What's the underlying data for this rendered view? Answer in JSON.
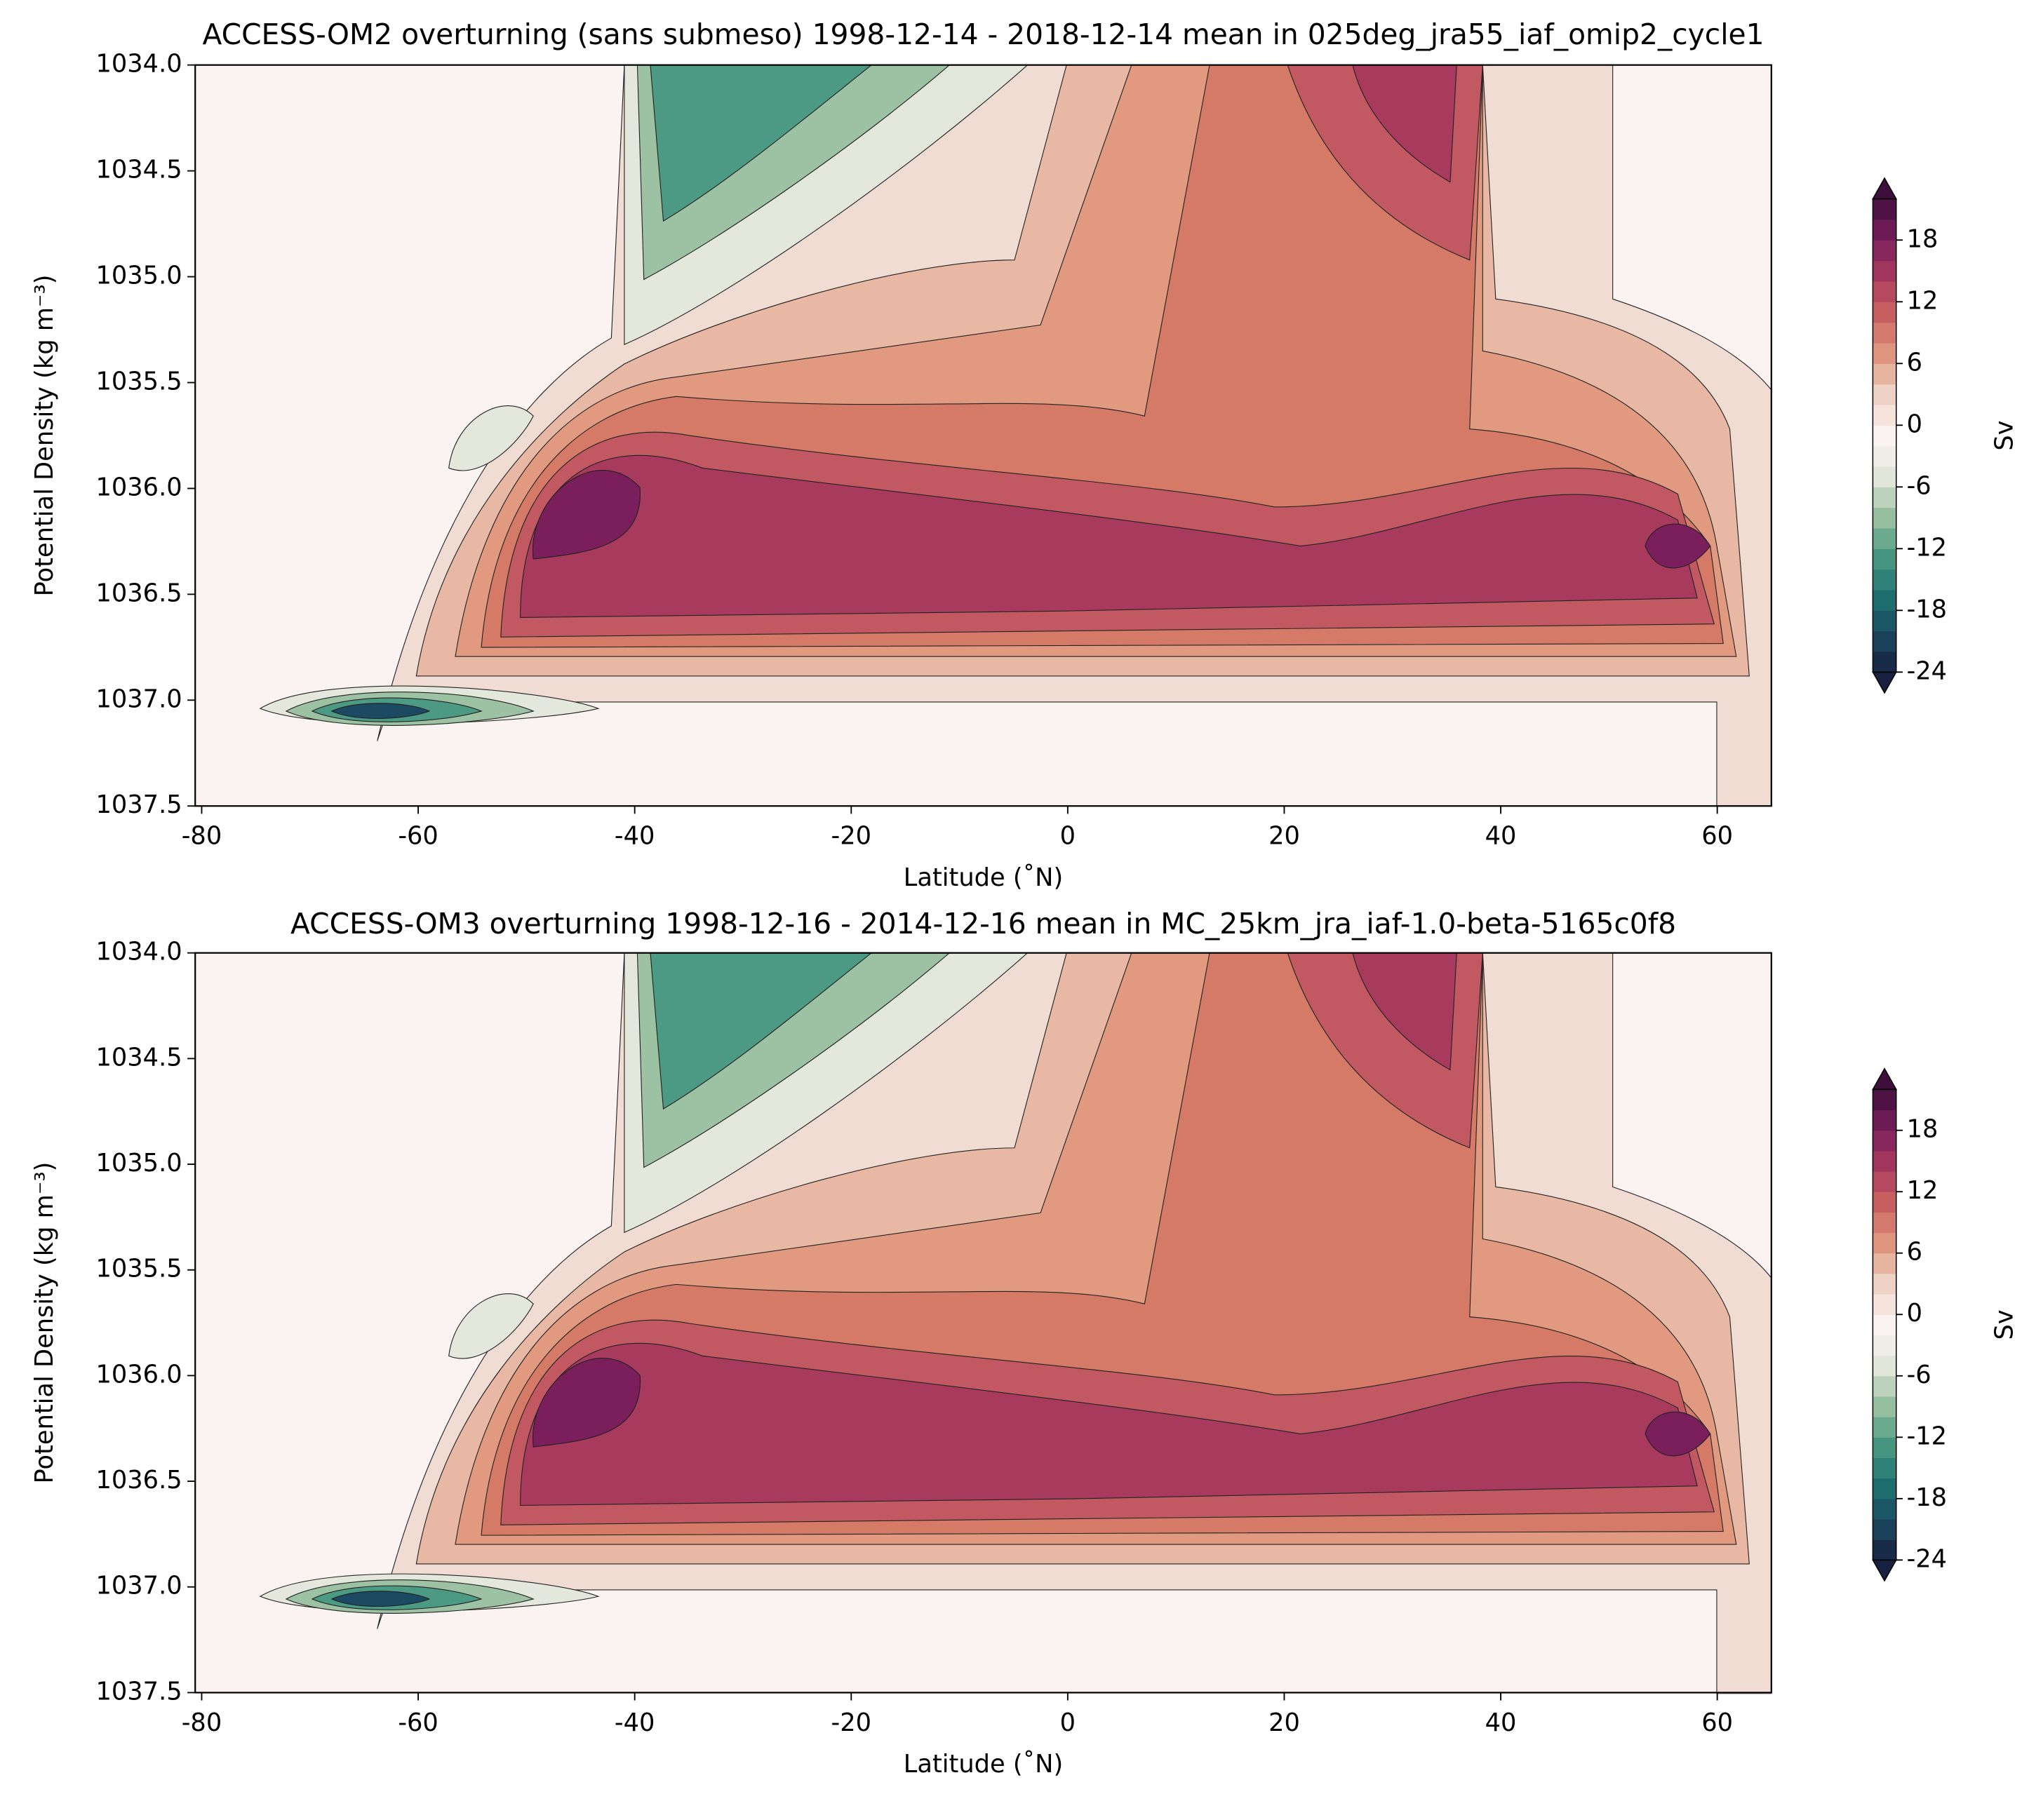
{
  "chart_data": [
    {
      "type": "contour",
      "title": "ACCESS-OM2 overturning (sans submeso) 1998-12-14 - 2018-12-14 mean in 025deg_jra55_iaf_omip2_cycle1",
      "x_label": "Latitude (˚N)",
      "y_label": "Potential Density (kg m⁻³)",
      "xlim": [
        -80.6,
        65
      ],
      "xticks": [
        -80,
        -60,
        -40,
        -20,
        0,
        20,
        40,
        60
      ],
      "ylim": [
        1037.5,
        1034.0
      ],
      "yticks": [
        {
          "value": 1034.0,
          "label": "1034.0"
        },
        {
          "value": 1034.5,
          "label": "1034.5"
        },
        {
          "value": 1035.0,
          "label": "1035.0"
        },
        {
          "value": 1035.5,
          "label": "1035.5"
        },
        {
          "value": 1036.0,
          "label": "1036.0"
        },
        {
          "value": 1036.5,
          "label": "1036.5"
        },
        {
          "value": 1037.0,
          "label": "1037.0"
        },
        {
          "value": 1037.5,
          "label": "1037.5"
        }
      ],
      "colorbar": {
        "label": "Sv",
        "levels": [
          -24,
          -22,
          -20,
          -18,
          -16,
          -14,
          -12,
          -10,
          -8,
          -6,
          -4,
          -2,
          0,
          2,
          4,
          6,
          8,
          10,
          12,
          14,
          16,
          18,
          20,
          22
        ],
        "ticks": [
          -24,
          -18,
          -12,
          -6,
          0,
          6,
          12,
          18
        ],
        "extend": "both",
        "colormap": [
          "#17203f",
          "#1b4a62",
          "#1d7471",
          "#4c9a83",
          "#9dc2a3",
          "#e4e7dc",
          "#fbf3f1",
          "#efd5c9",
          "#e19a80",
          "#cc6460",
          "#a83a5e",
          "#7a1e5c",
          "#3e0f3c"
        ]
      }
    },
    {
      "type": "contour",
      "title": "ACCESS-OM3 overturning 1998-12-16 - 2014-12-16 mean in MC_25km_jra_iaf-1.0-beta-5165c0f8",
      "x_label": "Latitude (˚N)",
      "y_label": "Potential Density (kg m⁻³)",
      "xlim": [
        -80.6,
        65
      ],
      "xticks": [
        -80,
        -60,
        -40,
        -20,
        0,
        20,
        40,
        60
      ],
      "ylim": [
        1037.5,
        1034.0
      ],
      "yticks": [
        {
          "value": 1034.0,
          "label": "1034.0"
        },
        {
          "value": 1034.5,
          "label": "1034.5"
        },
        {
          "value": 1035.0,
          "label": "1035.0"
        },
        {
          "value": 1035.5,
          "label": "1035.5"
        },
        {
          "value": 1036.0,
          "label": "1036.0"
        },
        {
          "value": 1036.5,
          "label": "1036.5"
        },
        {
          "value": 1037.0,
          "label": "1037.0"
        },
        {
          "value": 1037.5,
          "label": "1037.5"
        }
      ],
      "colorbar": {
        "label": "Sv",
        "levels": [
          -24,
          -22,
          -20,
          -18,
          -16,
          -14,
          -12,
          -10,
          -8,
          -6,
          -4,
          -2,
          0,
          2,
          4,
          6,
          8,
          10,
          12,
          14,
          16,
          18,
          20,
          22
        ],
        "ticks": [
          -24,
          -18,
          -12,
          -6,
          0,
          6,
          12,
          18
        ],
        "extend": "both",
        "colormap": [
          "#17203f",
          "#1b4a62",
          "#1d7471",
          "#4c9a83",
          "#9dc2a3",
          "#e4e7dc",
          "#fbf3f1",
          "#efd5c9",
          "#e19a80",
          "#cc6460",
          "#a83a5e",
          "#7a1e5c",
          "#3e0f3c"
        ]
      }
    }
  ]
}
